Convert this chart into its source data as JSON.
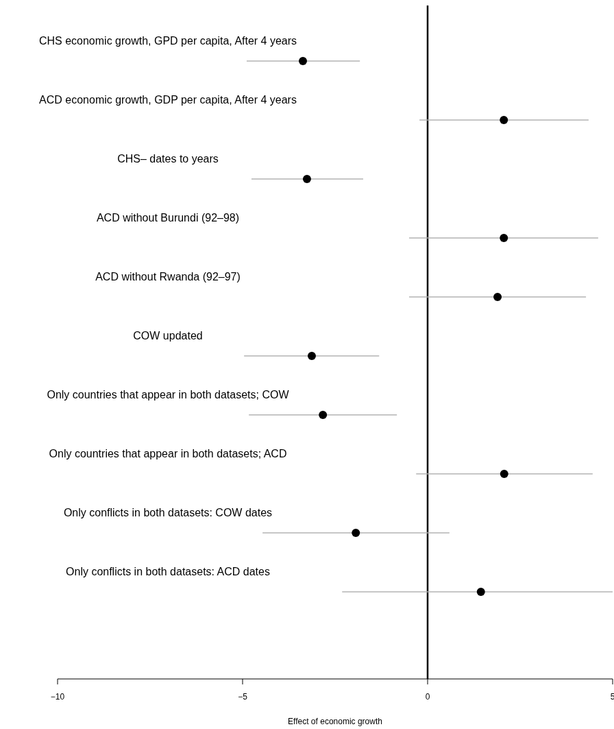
{
  "chart_data": {
    "type": "scatter",
    "orientation": "horizontal",
    "xlabel": "Effect of economic growth",
    "categories": [
      "CHS economic growth, GPD per capita, After 4 years",
      "ACD economic growth, GDP per capita, After 4 years",
      "CHS– dates to years",
      "ACD without Burundi (92–98)",
      "ACD without Rwanda (92–97)",
      "COW updated",
      "Only countries that appear in both datasets; COW",
      "Only countries that appear in both datasets; ACD",
      "Only conflicts in both datasets: COW dates",
      "Only conflicts in both datasets: ACD dates"
    ],
    "series": [
      {
        "color": "#000000",
        "values": [
          -3.37,
          2.06,
          -3.26,
          2.06,
          1.89,
          -3.13,
          -2.83,
          2.07,
          -1.94,
          1.44
        ],
        "errors": [
          [
            -4.89,
            -1.83
          ],
          [
            -0.22,
            4.35
          ],
          [
            -4.76,
            -1.74
          ],
          [
            -0.5,
            4.61
          ],
          [
            -0.5,
            4.28
          ],
          [
            -4.96,
            -1.31
          ],
          [
            -4.83,
            -0.83
          ],
          [
            -0.31,
            4.46
          ],
          [
            -4.46,
            0.59
          ],
          [
            -2.31,
            5
          ]
        ]
      }
    ],
    "xlim": [
      -10,
      5
    ],
    "xticks": [
      {
        "value": -10,
        "label": "−10"
      },
      {
        "value": -5,
        "label": "−5"
      },
      0,
      5
    ],
    "ref_lines": [
      {
        "axis": "x",
        "value": 0,
        "color": "#000000"
      }
    ],
    "marker": "circle",
    "grid": false
  }
}
